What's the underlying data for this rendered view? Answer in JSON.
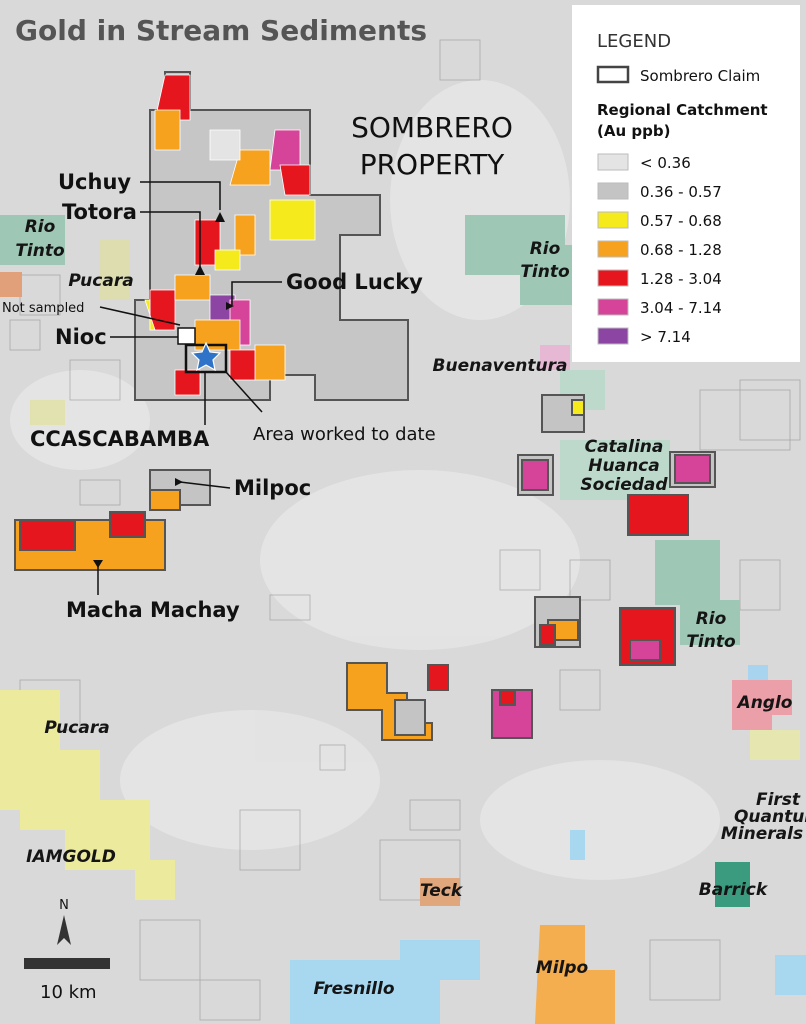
{
  "title": "Gold in Stream Sediments",
  "legend": {
    "title": "LEGEND",
    "claim_label": "Sombrero Claim",
    "heading": [
      "Regional Catchment",
      "(Au ppb)"
    ],
    "items": [
      {
        "label": "< 0.36",
        "color": "#e4e4e4"
      },
      {
        "label": "0.36 - 0.57",
        "color": "#c4c4c4"
      },
      {
        "label": "0.57 - 0.68",
        "color": "#f4ea1c"
      },
      {
        "label": "0.68 - 1.28",
        "color": "#f6a21f"
      },
      {
        "label": "1.28 - 3.04",
        "color": "#e5161e"
      },
      {
        "label": "3.04 - 7.14",
        "color": "#d6449a"
      },
      {
        "label": "> 7.14",
        "color": "#8d45a4"
      }
    ]
  },
  "property_label": [
    "SOMBRERO",
    "PROPERTY"
  ],
  "prospects": {
    "uchuy": "Uchuy",
    "totora": "Totora",
    "good_lucky": "Good Lucky",
    "not_sampled": "Not sampled",
    "nioc": "Nioc",
    "ccascabamba": "CCASCABAMBA",
    "area_worked": "Area worked to date",
    "milpoc": "Milpoc",
    "macha_machay": "Macha Machay"
  },
  "companies": {
    "rio_tinto_w": [
      "Rio",
      "Tinto"
    ],
    "rio_tinto_c": [
      "Rio",
      "Tinto"
    ],
    "rio_tinto_e": [
      "Rio",
      "Tinto"
    ],
    "pucara_n": "Pucara",
    "pucara_s": "Pucara",
    "buenaventura": "Buenaventura",
    "catalina": [
      "Catalina",
      "Huanca",
      "Sociedad"
    ],
    "anglo": "Anglo",
    "first_quantum": [
      "First",
      "Quantum",
      "Minerals"
    ],
    "barrick": "Barrick",
    "iamgold": "IAMGOLD",
    "teck": "Teck",
    "milpo": "Milpo",
    "fresnillo": "Fresnillo"
  },
  "scale": {
    "north": "N",
    "label": "10 km"
  }
}
